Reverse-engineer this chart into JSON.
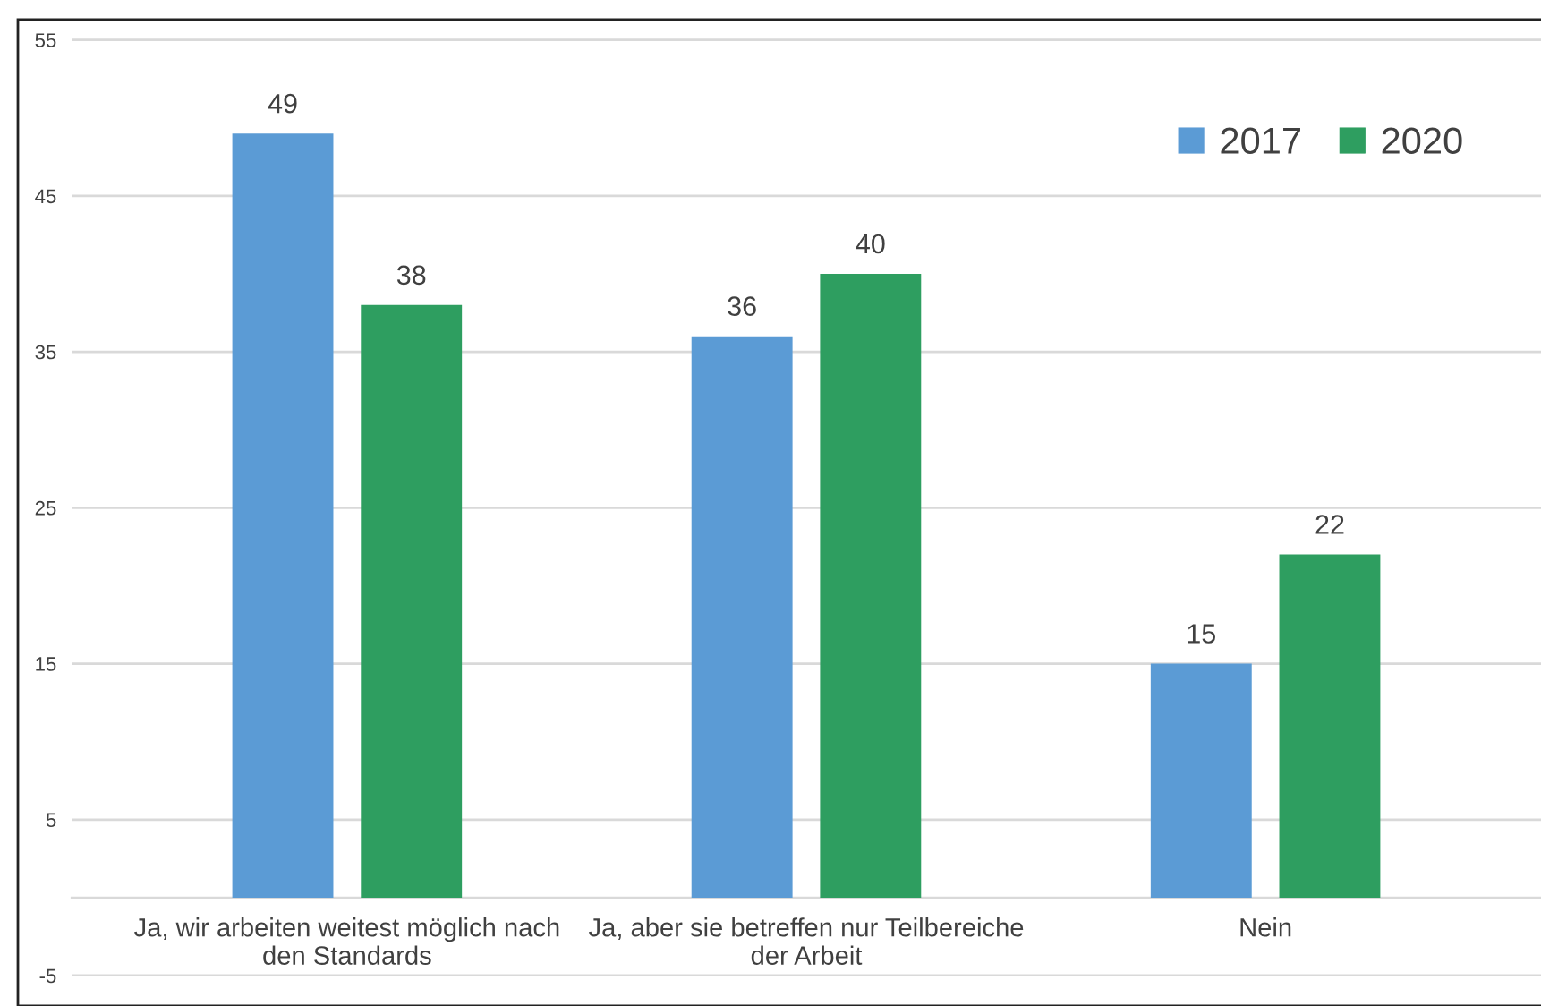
{
  "chart_data": {
    "type": "bar",
    "categories": [
      "Ja, wir arbeiten weitest möglich nach\nden Standards",
      "Ja, aber sie betreffen nur Teilbereiche\nder Arbeit",
      "Nein"
    ],
    "series": [
      {
        "name": "2017",
        "color": "#5b9bd5",
        "values": [
          49,
          36,
          15
        ]
      },
      {
        "name": "2020",
        "color": "#2e9e60",
        "values": [
          38,
          40,
          22
        ]
      }
    ],
    "ylim": [
      -5,
      56.3
    ],
    "yticks": [
      -5,
      5,
      15,
      25,
      35,
      45,
      55
    ],
    "grid": "y",
    "legend": "top right",
    "data_labels": true
  }
}
